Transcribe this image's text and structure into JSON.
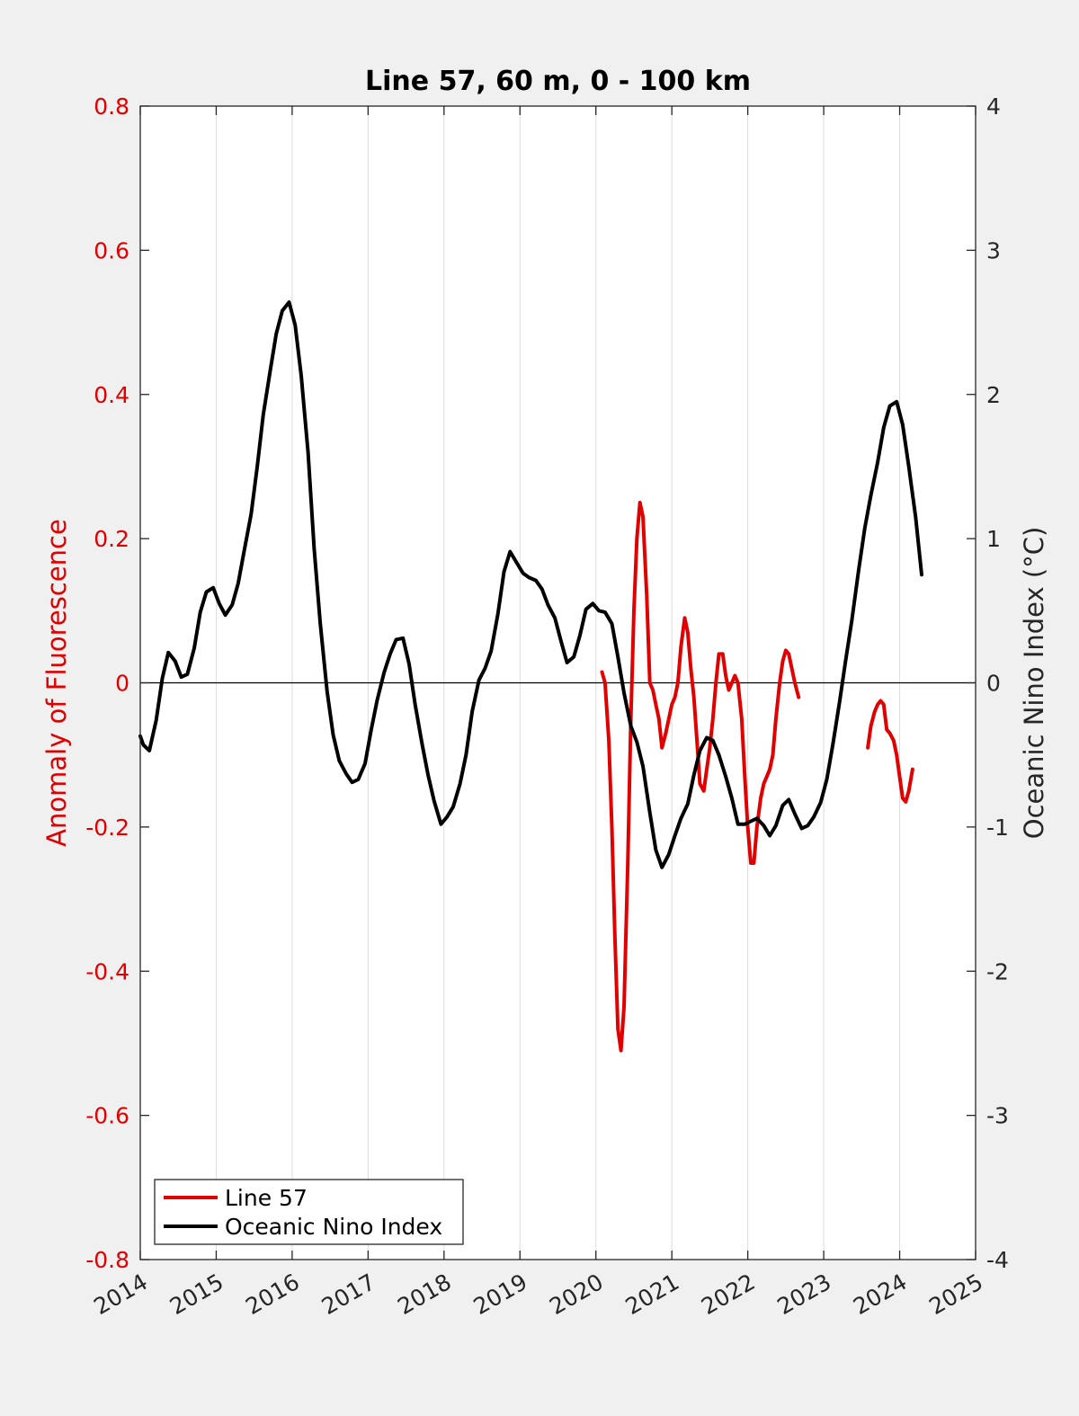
{
  "chart_data": {
    "type": "line",
    "title": "Line 57, 60 m, 0 - 100 km",
    "ylabel_left": "Anomaly of Fluorescence",
    "ylabel_right": "Oceanic Nino Index (°C)",
    "xlim": [
      2014,
      2025
    ],
    "ylim_left": [
      -0.8,
      0.8
    ],
    "ylim_right": [
      -4,
      4
    ],
    "x_ticks": [
      "2014",
      "2015",
      "2016",
      "2017",
      "2018",
      "2019",
      "2020",
      "2021",
      "2022",
      "2023",
      "2024",
      "2025"
    ],
    "y_ticks_left": [
      "0.8",
      "0.6",
      "0.4",
      "0.2",
      "0",
      "-0.2",
      "-0.4",
      "-0.6",
      "-0.8"
    ],
    "y_ticks_right": [
      "4",
      "3",
      "2",
      "1",
      "0",
      "-1",
      "-2",
      "-3",
      "-4"
    ],
    "grid": "vertical-x",
    "legend_position": "bottom-left",
    "series": [
      {
        "name": "Line 57",
        "axis": "left",
        "color": "#e00000",
        "segments": [
          [
            [
              2020.08,
              0.015
            ],
            [
              2020.12,
              0.0
            ],
            [
              2020.17,
              -0.08
            ],
            [
              2020.21,
              -0.2
            ],
            [
              2020.25,
              -0.35
            ],
            [
              2020.29,
              -0.48
            ],
            [
              2020.33,
              -0.51
            ],
            [
              2020.37,
              -0.45
            ],
            [
              2020.42,
              -0.25
            ],
            [
              2020.46,
              -0.05
            ],
            [
              2020.5,
              0.1
            ],
            [
              2020.54,
              0.2
            ],
            [
              2020.58,
              0.25
            ],
            [
              2020.62,
              0.23
            ],
            [
              2020.67,
              0.12
            ],
            [
              2020.71,
              0.0
            ],
            [
              2020.75,
              -0.01
            ],
            [
              2020.79,
              -0.03
            ],
            [
              2020.83,
              -0.05
            ],
            [
              2020.87,
              -0.09
            ],
            [
              2020.92,
              -0.07
            ],
            [
              2020.96,
              -0.05
            ],
            [
              2021.0,
              -0.03
            ],
            [
              2021.04,
              -0.02
            ],
            [
              2021.08,
              0.0
            ],
            [
              2021.12,
              0.05
            ],
            [
              2021.17,
              0.09
            ],
            [
              2021.21,
              0.07
            ],
            [
              2021.25,
              0.02
            ],
            [
              2021.29,
              -0.02
            ],
            [
              2021.33,
              -0.08
            ],
            [
              2021.37,
              -0.14
            ],
            [
              2021.42,
              -0.15
            ],
            [
              2021.46,
              -0.12
            ],
            [
              2021.5,
              -0.09
            ],
            [
              2021.54,
              -0.05
            ],
            [
              2021.58,
              0.0
            ],
            [
              2021.62,
              0.04
            ],
            [
              2021.67,
              0.04
            ],
            [
              2021.71,
              0.01
            ],
            [
              2021.75,
              -0.01
            ],
            [
              2021.79,
              0.0
            ],
            [
              2021.83,
              0.01
            ],
            [
              2021.87,
              0.0
            ],
            [
              2021.92,
              -0.05
            ],
            [
              2021.96,
              -0.13
            ],
            [
              2022.0,
              -0.2
            ],
            [
              2022.04,
              -0.25
            ],
            [
              2022.08,
              -0.25
            ],
            [
              2022.12,
              -0.2
            ],
            [
              2022.17,
              -0.16
            ],
            [
              2022.21,
              -0.14
            ],
            [
              2022.25,
              -0.13
            ],
            [
              2022.29,
              -0.12
            ],
            [
              2022.33,
              -0.1
            ],
            [
              2022.37,
              -0.05
            ],
            [
              2022.42,
              0.0
            ],
            [
              2022.46,
              0.03
            ],
            [
              2022.5,
              0.045
            ],
            [
              2022.54,
              0.04
            ],
            [
              2022.58,
              0.02
            ],
            [
              2022.62,
              -0.0
            ],
            [
              2022.67,
              -0.02
            ]
          ],
          [
            [
              2023.58,
              -0.09
            ],
            [
              2023.62,
              -0.06
            ],
            [
              2023.67,
              -0.04
            ],
            [
              2023.71,
              -0.03
            ],
            [
              2023.75,
              -0.025
            ],
            [
              2023.79,
              -0.03
            ],
            [
              2023.83,
              -0.065
            ],
            [
              2023.87,
              -0.07
            ],
            [
              2023.92,
              -0.08
            ],
            [
              2023.96,
              -0.1
            ],
            [
              2024.0,
              -0.13
            ],
            [
              2024.04,
              -0.16
            ],
            [
              2024.08,
              -0.165
            ],
            [
              2024.12,
              -0.15
            ],
            [
              2024.17,
              -0.12
            ]
          ]
        ]
      },
      {
        "name": "Oceanic Nino Index",
        "axis": "right",
        "color": "#000000",
        "segments": [
          [
            [
              2014.0,
              -0.37
            ],
            [
              2014.04,
              -0.43
            ],
            [
              2014.12,
              -0.47
            ],
            [
              2014.21,
              -0.26
            ],
            [
              2014.29,
              0.03
            ],
            [
              2014.37,
              0.21
            ],
            [
              2014.46,
              0.15
            ],
            [
              2014.54,
              0.04
            ],
            [
              2014.62,
              0.06
            ],
            [
              2014.71,
              0.24
            ],
            [
              2014.79,
              0.49
            ],
            [
              2014.87,
              0.63
            ],
            [
              2014.96,
              0.66
            ],
            [
              2015.04,
              0.55
            ],
            [
              2015.12,
              0.47
            ],
            [
              2015.21,
              0.54
            ],
            [
              2015.29,
              0.69
            ],
            [
              2015.37,
              0.92
            ],
            [
              2015.46,
              1.17
            ],
            [
              2015.54,
              1.5
            ],
            [
              2015.62,
              1.86
            ],
            [
              2015.71,
              2.16
            ],
            [
              2015.79,
              2.42
            ],
            [
              2015.87,
              2.58
            ],
            [
              2015.96,
              2.64
            ],
            [
              2016.04,
              2.48
            ],
            [
              2016.12,
              2.13
            ],
            [
              2016.21,
              1.6
            ],
            [
              2016.29,
              0.93
            ],
            [
              2016.37,
              0.41
            ],
            [
              2016.46,
              -0.06
            ],
            [
              2016.54,
              -0.36
            ],
            [
              2016.62,
              -0.54
            ],
            [
              2016.71,
              -0.63
            ],
            [
              2016.79,
              -0.69
            ],
            [
              2016.87,
              -0.67
            ],
            [
              2016.96,
              -0.56
            ],
            [
              2017.04,
              -0.33
            ],
            [
              2017.12,
              -0.12
            ],
            [
              2017.21,
              0.07
            ],
            [
              2017.29,
              0.2
            ],
            [
              2017.37,
              0.3
            ],
            [
              2017.46,
              0.31
            ],
            [
              2017.54,
              0.13
            ],
            [
              2017.62,
              -0.15
            ],
            [
              2017.71,
              -0.42
            ],
            [
              2017.79,
              -0.64
            ],
            [
              2017.87,
              -0.82
            ],
            [
              2017.96,
              -0.98
            ],
            [
              2018.04,
              -0.93
            ],
            [
              2018.12,
              -0.86
            ],
            [
              2018.21,
              -0.7
            ],
            [
              2018.29,
              -0.5
            ],
            [
              2018.37,
              -0.2
            ],
            [
              2018.46,
              0.02
            ],
            [
              2018.54,
              0.1
            ],
            [
              2018.62,
              0.22
            ],
            [
              2018.71,
              0.48
            ],
            [
              2018.79,
              0.77
            ],
            [
              2018.87,
              0.91
            ],
            [
              2018.96,
              0.83
            ],
            [
              2019.04,
              0.76
            ],
            [
              2019.12,
              0.73
            ],
            [
              2019.21,
              0.71
            ],
            [
              2019.29,
              0.65
            ],
            [
              2019.37,
              0.54
            ],
            [
              2019.46,
              0.45
            ],
            [
              2019.54,
              0.29
            ],
            [
              2019.62,
              0.14
            ],
            [
              2019.71,
              0.18
            ],
            [
              2019.79,
              0.33
            ],
            [
              2019.87,
              0.51
            ],
            [
              2019.96,
              0.55
            ],
            [
              2020.04,
              0.5
            ],
            [
              2020.12,
              0.49
            ],
            [
              2020.21,
              0.41
            ],
            [
              2020.29,
              0.18
            ],
            [
              2020.37,
              -0.07
            ],
            [
              2020.46,
              -0.3
            ],
            [
              2020.54,
              -0.41
            ],
            [
              2020.62,
              -0.58
            ],
            [
              2020.71,
              -0.9
            ],
            [
              2020.79,
              -1.16
            ],
            [
              2020.87,
              -1.28
            ],
            [
              2020.96,
              -1.19
            ],
            [
              2021.04,
              -1.06
            ],
            [
              2021.12,
              -0.94
            ],
            [
              2021.21,
              -0.84
            ],
            [
              2021.29,
              -0.64
            ],
            [
              2021.37,
              -0.47
            ],
            [
              2021.46,
              -0.38
            ],
            [
              2021.54,
              -0.4
            ],
            [
              2021.62,
              -0.5
            ],
            [
              2021.71,
              -0.65
            ],
            [
              2021.79,
              -0.8
            ],
            [
              2021.87,
              -0.98
            ],
            [
              2021.96,
              -0.98
            ],
            [
              2022.04,
              -0.96
            ],
            [
              2022.12,
              -0.94
            ],
            [
              2022.21,
              -0.99
            ],
            [
              2022.29,
              -1.06
            ],
            [
              2022.37,
              -0.99
            ],
            [
              2022.46,
              -0.85
            ],
            [
              2022.54,
              -0.81
            ],
            [
              2022.62,
              -0.91
            ],
            [
              2022.71,
              -1.01
            ],
            [
              2022.79,
              -0.99
            ],
            [
              2022.87,
              -0.93
            ],
            [
              2022.96,
              -0.83
            ],
            [
              2023.04,
              -0.67
            ],
            [
              2023.12,
              -0.43
            ],
            [
              2023.21,
              -0.13
            ],
            [
              2023.29,
              0.16
            ],
            [
              2023.37,
              0.43
            ],
            [
              2023.46,
              0.78
            ],
            [
              2023.54,
              1.07
            ],
            [
              2023.62,
              1.3
            ],
            [
              2023.71,
              1.53
            ],
            [
              2023.79,
              1.77
            ],
            [
              2023.87,
              1.92
            ],
            [
              2023.96,
              1.95
            ],
            [
              2024.04,
              1.79
            ],
            [
              2024.12,
              1.5
            ],
            [
              2024.21,
              1.15
            ],
            [
              2024.29,
              0.75
            ]
          ]
        ]
      }
    ]
  }
}
